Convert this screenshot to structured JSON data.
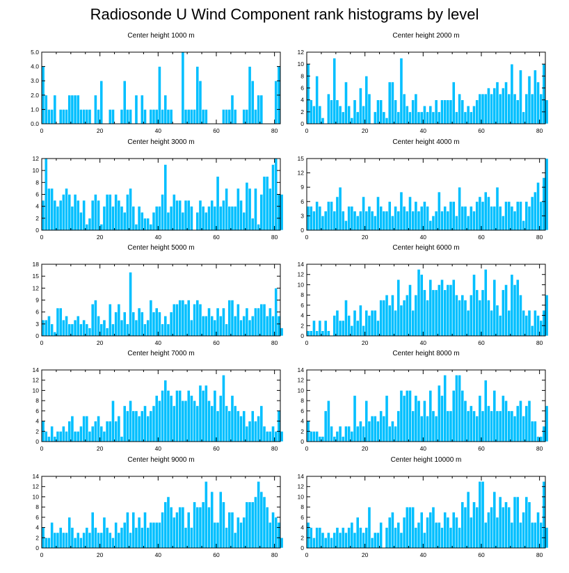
{
  "title": "Radiosonde U Wind Component rank histograms by level",
  "chart_data": [
    {
      "type": "bar",
      "title": "Center height 1000 m",
      "ylim": [
        0,
        5
      ],
      "yticks": [
        "0.0",
        "1.0",
        "2.0",
        "3.0",
        "4.0",
        "5.0"
      ],
      "xlim": [
        0,
        82
      ],
      "xticks": [
        0,
        20,
        40,
        60,
        80
      ],
      "values": [
        4,
        2,
        1,
        1,
        2,
        0,
        1,
        1,
        1,
        2,
        2,
        2,
        2,
        1,
        1,
        1,
        1,
        0,
        2,
        1,
        3,
        0,
        0,
        1,
        1,
        0,
        0,
        1,
        3,
        1,
        1,
        0,
        2,
        0,
        2,
        1,
        0,
        1,
        1,
        1,
        4,
        1,
        2,
        1,
        1,
        0,
        0,
        0,
        5,
        1,
        1,
        1,
        1,
        4,
        3,
        1,
        1,
        0,
        0,
        0,
        0,
        0,
        1,
        1,
        1,
        2,
        1,
        0,
        0,
        1,
        1,
        4,
        3,
        1,
        2,
        2,
        0,
        0,
        0,
        0,
        3,
        4,
        0
      ]
    },
    {
      "type": "bar",
      "title": "Center height 2000 m",
      "ylim": [
        0,
        12
      ],
      "yticks": [
        "0",
        "2",
        "4",
        "6",
        "8",
        "10",
        "12"
      ],
      "xlim": [
        0,
        82
      ],
      "xticks": [
        0,
        20,
        40,
        60,
        80
      ],
      "values": [
        10,
        4,
        3,
        8,
        3,
        1,
        0,
        5,
        4,
        11,
        4,
        3,
        2,
        7,
        3,
        1,
        4,
        2,
        6,
        3,
        8,
        5,
        0,
        2,
        4,
        4,
        2,
        1,
        7,
        7,
        4,
        2,
        11,
        5,
        3,
        2,
        4,
        5,
        2,
        2,
        3,
        2,
        3,
        2,
        4,
        2,
        4,
        4,
        4,
        4,
        7,
        2,
        5,
        4,
        2,
        3,
        2,
        3,
        4,
        5,
        5,
        5,
        6,
        5,
        6,
        7,
        5,
        6,
        7,
        5,
        10,
        5,
        4,
        9,
        2,
        5,
        8,
        5,
        9,
        7,
        5,
        10,
        4
      ]
    },
    {
      "type": "bar",
      "title": "Center height 3000 m",
      "ylim": [
        0,
        12
      ],
      "yticks": [
        "0",
        "2",
        "4",
        "6",
        "8",
        "10",
        "12"
      ],
      "xlim": [
        0,
        82
      ],
      "xticks": [
        0,
        20,
        40,
        60,
        80
      ],
      "values": [
        5,
        12,
        7,
        7,
        5,
        4,
        5,
        6,
        7,
        6,
        4,
        6,
        5,
        3,
        5,
        1,
        2,
        5,
        6,
        5,
        1,
        4,
        6,
        6,
        4,
        6,
        5,
        4,
        3,
        6,
        7,
        4,
        1,
        4,
        3,
        2,
        2,
        1,
        3,
        4,
        4,
        6,
        11,
        3,
        4,
        6,
        5,
        5,
        3,
        5,
        5,
        4,
        0,
        3,
        5,
        4,
        3,
        4,
        5,
        4,
        9,
        4,
        5,
        7,
        4,
        4,
        4,
        7,
        5,
        3,
        8,
        7,
        2,
        7,
        1,
        6,
        9,
        9,
        7,
        11,
        12,
        6,
        6
      ]
    },
    {
      "type": "bar",
      "title": "Center height 4000 m",
      "ylim": [
        0,
        15
      ],
      "yticks": [
        "0",
        "3",
        "6",
        "9",
        "12",
        "15"
      ],
      "xlim": [
        0,
        82
      ],
      "xticks": [
        0,
        20,
        40,
        60,
        80
      ],
      "values": [
        5,
        5,
        4,
        6,
        5,
        3,
        4,
        6,
        6,
        4,
        7,
        9,
        4,
        2,
        5,
        5,
        4,
        3,
        4,
        7,
        4,
        5,
        4,
        3,
        7,
        5,
        4,
        4,
        6,
        3,
        5,
        4,
        8,
        5,
        4,
        7,
        4,
        6,
        4,
        5,
        6,
        5,
        2,
        3,
        4,
        8,
        4,
        5,
        4,
        6,
        6,
        3,
        9,
        5,
        5,
        3,
        5,
        4,
        6,
        7,
        6,
        8,
        7,
        5,
        5,
        9,
        5,
        3,
        6,
        6,
        5,
        4,
        6,
        6,
        2,
        6,
        5,
        7,
        8,
        10,
        6,
        11,
        15
      ]
    },
    {
      "type": "bar",
      "title": "Center height 5000 m",
      "ylim": [
        0,
        18
      ],
      "yticks": [
        "0",
        "3",
        "6",
        "9",
        "12",
        "15",
        "18"
      ],
      "xlim": [
        0,
        82
      ],
      "xticks": [
        0,
        20,
        40,
        60,
        80
      ],
      "values": [
        4,
        4,
        5,
        3,
        1,
        7,
        7,
        4,
        5,
        3,
        3,
        4,
        5,
        3,
        4,
        3,
        2,
        8,
        9,
        5,
        3,
        4,
        2,
        8,
        3,
        6,
        8,
        4,
        6,
        3,
        16,
        6,
        4,
        7,
        6,
        3,
        4,
        9,
        6,
        7,
        6,
        3,
        5,
        3,
        6,
        8,
        8,
        9,
        9,
        8,
        9,
        4,
        8,
        9,
        8,
        5,
        5,
        7,
        5,
        4,
        7,
        5,
        7,
        3,
        9,
        9,
        5,
        8,
        4,
        5,
        7,
        4,
        5,
        7,
        7,
        8,
        8,
        5,
        7,
        5,
        12,
        5,
        2
      ]
    },
    {
      "type": "bar",
      "title": "Center height 6000 m",
      "ylim": [
        0,
        14
      ],
      "yticks": [
        "0",
        "2",
        "4",
        "6",
        "8",
        "10",
        "12",
        "14"
      ],
      "xlim": [
        0,
        82
      ],
      "xticks": [
        0,
        20,
        40,
        60,
        80
      ],
      "values": [
        1,
        1,
        3,
        1,
        3,
        1,
        3,
        1,
        0,
        4,
        5,
        3,
        3,
        7,
        4,
        2,
        5,
        3,
        6,
        2,
        5,
        4,
        5,
        5,
        3,
        7,
        7,
        8,
        6,
        8,
        5,
        11,
        6,
        7,
        8,
        10,
        5,
        8,
        13,
        12,
        9,
        7,
        11,
        9,
        9,
        10,
        11,
        9,
        10,
        10,
        11,
        8,
        7,
        8,
        7,
        5,
        8,
        12,
        9,
        7,
        9,
        13,
        7,
        5,
        11,
        6,
        4,
        9,
        10,
        5,
        12,
        10,
        11,
        8,
        5,
        4,
        5,
        2,
        5,
        4,
        3,
        5,
        8
      ]
    },
    {
      "type": "bar",
      "title": "Center height 7000 m",
      "ylim": [
        0,
        14
      ],
      "yticks": [
        "0",
        "2",
        "4",
        "6",
        "8",
        "10",
        "12",
        "14"
      ],
      "xlim": [
        0,
        82
      ],
      "xticks": [
        0,
        20,
        40,
        60,
        80
      ],
      "values": [
        4,
        2,
        1,
        3,
        1,
        2,
        2,
        3,
        2,
        4,
        5,
        2,
        2,
        3,
        5,
        5,
        2,
        3,
        4,
        5,
        3,
        2,
        4,
        4,
        8,
        4,
        5,
        1,
        7,
        6,
        8,
        6,
        6,
        5,
        6,
        7,
        5,
        6,
        7,
        9,
        8,
        10,
        12,
        10,
        9,
        7,
        10,
        10,
        8,
        8,
        10,
        9,
        8,
        7,
        11,
        10,
        11,
        8,
        7,
        10,
        6,
        9,
        13,
        7,
        6,
        9,
        7,
        6,
        5,
        6,
        3,
        4,
        6,
        4,
        5,
        7,
        3,
        2,
        2,
        3,
        2,
        6,
        2
      ]
    },
    {
      "type": "bar",
      "title": "Center height 8000 m",
      "ylim": [
        0,
        14
      ],
      "yticks": [
        "0",
        "2",
        "4",
        "6",
        "8",
        "10",
        "12",
        "14"
      ],
      "xlim": [
        0,
        82
      ],
      "xticks": [
        0,
        20,
        40,
        60,
        80
      ],
      "values": [
        4,
        2,
        2,
        2,
        1,
        1,
        6,
        8,
        3,
        1,
        2,
        3,
        1,
        3,
        3,
        2,
        9,
        3,
        4,
        3,
        8,
        4,
        5,
        5,
        4,
        6,
        5,
        9,
        3,
        4,
        3,
        6,
        10,
        9,
        10,
        10,
        6,
        9,
        8,
        5,
        8,
        5,
        10,
        6,
        5,
        11,
        9,
        13,
        6,
        6,
        10,
        13,
        13,
        10,
        8,
        6,
        7,
        6,
        5,
        9,
        6,
        12,
        7,
        6,
        10,
        6,
        6,
        9,
        8,
        6,
        6,
        5,
        7,
        8,
        5,
        7,
        8,
        4,
        4,
        1,
        1,
        3,
        7
      ]
    },
    {
      "type": "bar",
      "title": "Center height 9000 m",
      "ylim": [
        0,
        14
      ],
      "yticks": [
        "0",
        "2",
        "4",
        "6",
        "8",
        "10",
        "12",
        "14"
      ],
      "xlim": [
        0,
        82
      ],
      "xticks": [
        0,
        20,
        40,
        60,
        80
      ],
      "values": [
        4,
        2,
        2,
        5,
        3,
        3,
        4,
        3,
        3,
        6,
        4,
        2,
        3,
        2,
        3,
        4,
        3,
        7,
        4,
        3,
        3,
        6,
        4,
        3,
        2,
        5,
        3,
        4,
        5,
        7,
        3,
        7,
        4,
        6,
        4,
        7,
        4,
        5,
        5,
        5,
        5,
        7,
        9,
        10,
        8,
        6,
        7,
        8,
        8,
        4,
        7,
        4,
        9,
        8,
        8,
        9,
        13,
        8,
        11,
        5,
        5,
        11,
        9,
        4,
        7,
        7,
        3,
        6,
        5,
        6,
        9,
        9,
        9,
        10,
        13,
        11,
        10,
        8,
        5,
        7,
        6,
        5,
        2
      ]
    },
    {
      "type": "bar",
      "title": "Center height 10000 m",
      "ylim": [
        0,
        14
      ],
      "yticks": [
        "0",
        "2",
        "4",
        "6",
        "8",
        "10",
        "12",
        "14"
      ],
      "xlim": [
        0,
        82
      ],
      "xticks": [
        0,
        20,
        40,
        60,
        80
      ],
      "values": [
        5,
        4,
        2,
        4,
        4,
        3,
        2,
        3,
        2,
        3,
        4,
        3,
        4,
        3,
        4,
        5,
        3,
        6,
        4,
        3,
        4,
        8,
        2,
        3,
        3,
        5,
        0,
        4,
        6,
        7,
        4,
        5,
        3,
        6,
        8,
        8,
        8,
        4,
        5,
        7,
        3,
        6,
        7,
        8,
        5,
        5,
        4,
        7,
        6,
        4,
        7,
        6,
        4,
        9,
        8,
        11,
        6,
        9,
        8,
        13,
        13,
        5,
        7,
        8,
        11,
        6,
        10,
        8,
        9,
        8,
        5,
        10,
        10,
        5,
        7,
        10,
        9,
        5,
        5,
        7,
        5,
        13,
        4
      ]
    }
  ]
}
